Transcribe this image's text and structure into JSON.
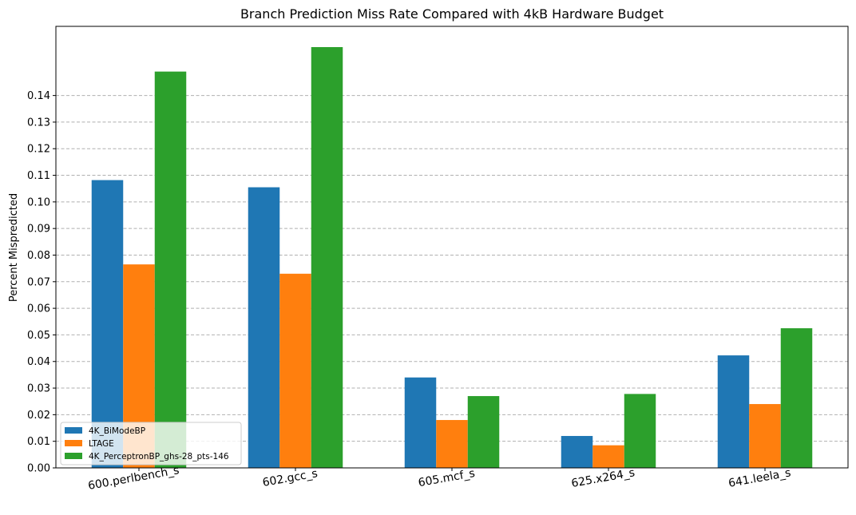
{
  "chart_data": {
    "type": "bar",
    "title": "Branch Prediction Miss Rate Compared with 4kB Hardware Budget",
    "xlabel": "",
    "ylabel": "Percent Mispredicted",
    "categories": [
      "600.perlbench_s",
      "602.gcc_s",
      "605.mcf_s",
      "625.x264_s",
      "641.leela_s"
    ],
    "series": [
      {
        "name": "4K_BiModeBP",
        "color": "#1f77b4",
        "values": [
          0.1082,
          0.1055,
          0.034,
          0.012,
          0.0423
        ]
      },
      {
        "name": "LTAGE",
        "color": "#ff7f0e",
        "values": [
          0.0765,
          0.073,
          0.018,
          0.0085,
          0.024
        ]
      },
      {
        "name": "4K_PerceptronBP_ghs-28_pts-146",
        "color": "#2ca02c",
        "values": [
          0.149,
          0.1582,
          0.027,
          0.0278,
          0.0525
        ]
      }
    ],
    "yticks": [
      "0.00",
      "0.01",
      "0.02",
      "0.03",
      "0.04",
      "0.05",
      "0.06",
      "0.07",
      "0.08",
      "0.09",
      "0.10",
      "0.11",
      "0.12",
      "0.13",
      "0.14"
    ],
    "ylim": [
      0,
      0.166
    ],
    "grid": "y-dashed",
    "legend_position": "lower-left",
    "xtick_rotation": "slight"
  }
}
